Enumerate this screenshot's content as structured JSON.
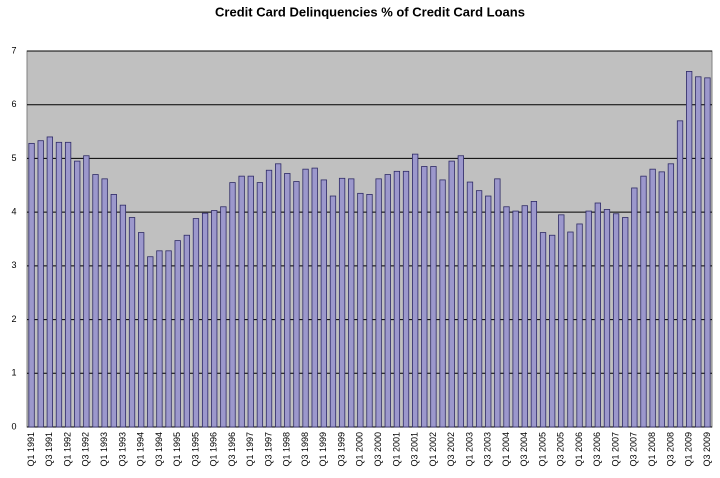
{
  "chart_data": {
    "type": "bar",
    "title": "Credit Card Delinquencies % of Credit Card Loans",
    "categories": [
      "Q1 1991",
      null,
      "Q3 1991",
      null,
      "Q1 1992",
      null,
      "Q3 1992",
      null,
      "Q1 1993",
      null,
      "Q3 1993",
      null,
      "Q1 1994",
      null,
      "Q3 1994",
      null,
      "Q1 1995",
      null,
      "Q3 1995",
      null,
      "Q1 1996",
      null,
      "Q3 1996",
      null,
      "Q1 1997",
      null,
      "Q3 1997",
      null,
      "Q1 1998",
      null,
      "Q3 1998",
      null,
      "Q1 1999",
      null,
      "Q3 1999",
      null,
      "Q1 2000",
      null,
      "Q3 2000",
      null,
      "Q1 2001",
      null,
      "Q3 2001",
      null,
      "Q1 2002",
      null,
      "Q3 2002",
      null,
      "Q1 2003",
      null,
      "Q3 2003",
      null,
      "Q1 2004",
      null,
      "Q3 2004",
      null,
      "Q1 2005",
      null,
      "Q3 2005",
      null,
      "Q1 2006",
      null,
      "Q3 2006",
      null,
      "Q1 2007",
      null,
      "Q3 2007",
      null,
      "Q1 2008",
      null,
      "Q3 2008",
      null,
      "Q1 2009",
      null,
      "Q3 2009"
    ],
    "values": [
      5.28,
      5.33,
      5.4,
      5.3,
      5.3,
      4.95,
      5.05,
      4.7,
      4.62,
      4.33,
      4.13,
      3.9,
      3.62,
      3.17,
      3.28,
      3.28,
      3.47,
      3.57,
      3.88,
      3.98,
      4.03,
      4.1,
      4.55,
      4.67,
      4.67,
      4.55,
      4.78,
      4.9,
      4.72,
      4.57,
      4.8,
      4.82,
      4.6,
      4.3,
      4.63,
      4.62,
      4.35,
      4.33,
      4.62,
      4.7,
      4.76,
      4.76,
      5.08,
      4.85,
      4.85,
      4.6,
      4.95,
      5.05,
      4.56,
      4.4,
      4.3,
      4.62,
      4.1,
      4.02,
      4.12,
      4.2,
      3.62,
      3.57,
      3.95,
      3.63,
      3.78,
      4.02,
      4.17,
      4.05,
      3.97,
      3.9,
      4.45,
      4.67,
      4.8,
      4.75,
      4.9,
      5.7,
      6.62,
      6.52,
      6.5
    ],
    "color": "#9c98cc",
    "ylim": [
      0,
      7
    ],
    "yticks": [
      0,
      1,
      2,
      3,
      4,
      5,
      6,
      7
    ],
    "grid": true
  }
}
